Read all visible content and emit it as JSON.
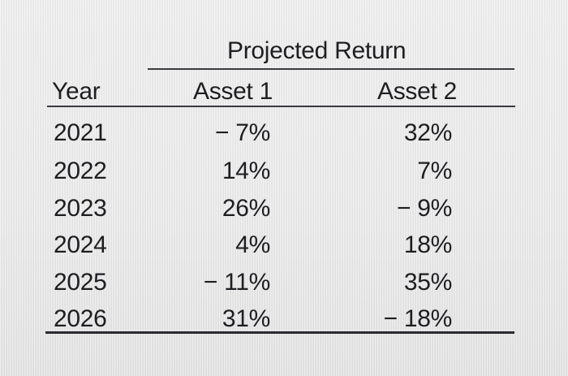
{
  "table": {
    "group_header": "Projected Return",
    "columns": [
      "Year",
      "Asset 1",
      "Asset 2"
    ],
    "rows": [
      {
        "year": "2021",
        "asset1": "− 7%",
        "asset2": "32%"
      },
      {
        "year": "2022",
        "asset1": "14%",
        "asset2": "7%"
      },
      {
        "year": "2023",
        "asset1": "26%",
        "asset2": "− 9%"
      },
      {
        "year": "2024",
        "asset1": "4%",
        "asset2": "18%"
      },
      {
        "year": "2025",
        "asset1": "− 11%",
        "asset2": "35%"
      },
      {
        "year": "2026",
        "asset1": "31%",
        "asset2": "− 18%"
      }
    ]
  }
}
